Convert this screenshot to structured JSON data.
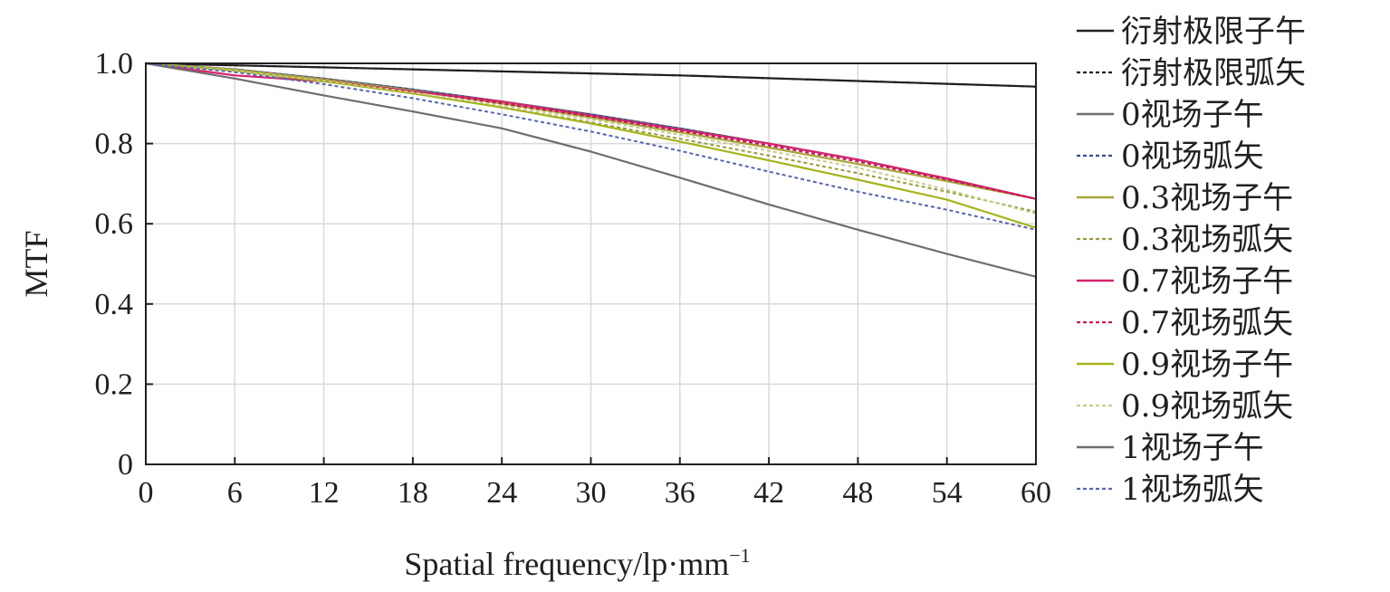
{
  "chart_data": {
    "type": "line",
    "xlabel": "Spatial frequency/lp·mm",
    "xlabel_sup": "−1",
    "ylabel": "MTF",
    "xlim": [
      0,
      60
    ],
    "ylim": [
      0,
      1.0
    ],
    "x_ticks": [
      "0",
      "6",
      "12",
      "18",
      "24",
      "30",
      "36",
      "42",
      "48",
      "54",
      "60"
    ],
    "y_ticks": [
      "0",
      "0.2",
      "0.4",
      "0.6",
      "0.8",
      "1.0"
    ],
    "grid": true,
    "legend_position": "right",
    "x": [
      0,
      6,
      12,
      18,
      24,
      30,
      36,
      42,
      48,
      54,
      60
    ],
    "series": [
      {
        "name": "衍射极限子午",
        "color": "#231f20",
        "dash": false,
        "values": [
          1.0,
          0.995,
          0.99,
          0.985,
          0.98,
          0.975,
          0.97,
          0.963,
          0.956,
          0.949,
          0.942
        ]
      },
      {
        "name": "衍射极限弧矢",
        "color": "#231f20",
        "dash": true,
        "values": [
          1.0,
          0.995,
          0.99,
          0.985,
          0.98,
          0.975,
          0.97,
          0.963,
          0.956,
          0.949,
          0.942
        ]
      },
      {
        "name": "0视场子午",
        "color": "#6d6e71",
        "dash": false,
        "values": [
          1.0,
          0.985,
          0.962,
          0.935,
          0.905,
          0.873,
          0.838,
          0.8,
          0.76,
          0.712,
          0.662
        ]
      },
      {
        "name": "0视场弧矢",
        "color": "#3a4a8a",
        "dash": true,
        "values": [
          1.0,
          0.985,
          0.962,
          0.935,
          0.905,
          0.873,
          0.838,
          0.8,
          0.76,
          0.712,
          0.662
        ]
      },
      {
        "name": "0.3视场子午",
        "color": "#a8a53a",
        "dash": false,
        "values": [
          1.0,
          0.984,
          0.96,
          0.932,
          0.9,
          0.865,
          0.828,
          0.79,
          0.749,
          0.706,
          0.662
        ]
      },
      {
        "name": "0.3视场弧矢",
        "color": "#9a9a40",
        "dash": true,
        "values": [
          1.0,
          0.98,
          0.955,
          0.925,
          0.89,
          0.853,
          0.812,
          0.77,
          0.726,
          0.68,
          0.63
        ]
      },
      {
        "name": "0.7视场子午",
        "color": "#d6246e",
        "dash": false,
        "values": [
          1.0,
          0.97,
          0.955,
          0.93,
          0.905,
          0.87,
          0.835,
          0.8,
          0.76,
          0.713,
          0.662
        ]
      },
      {
        "name": "0.7视场弧矢",
        "color": "#c2185b",
        "dash": true,
        "values": [
          1.0,
          0.982,
          0.958,
          0.93,
          0.9,
          0.868,
          0.832,
          0.795,
          0.755,
          0.71,
          0.662
        ]
      },
      {
        "name": "0.9视场子午",
        "color": "#a6b31e",
        "dash": false,
        "values": [
          1.0,
          0.982,
          0.955,
          0.925,
          0.89,
          0.85,
          0.805,
          0.758,
          0.71,
          0.66,
          0.59
        ]
      },
      {
        "name": "0.9视场弧矢",
        "color": "#c7cc8a",
        "dash": true,
        "values": [
          1.0,
          0.982,
          0.957,
          0.928,
          0.895,
          0.86,
          0.822,
          0.782,
          0.74,
          0.685,
          0.625
        ]
      },
      {
        "name": "1视场子午",
        "color": "#6d6e71",
        "dash": false,
        "values": [
          1.0,
          0.962,
          0.92,
          0.88,
          0.838,
          0.78,
          0.715,
          0.648,
          0.585,
          0.525,
          0.468
        ]
      },
      {
        "name": "1视场弧矢",
        "color": "#5a66a8",
        "dash": true,
        "values": [
          1.0,
          0.978,
          0.948,
          0.913,
          0.873,
          0.83,
          0.782,
          0.73,
          0.68,
          0.635,
          0.585
        ]
      }
    ]
  }
}
